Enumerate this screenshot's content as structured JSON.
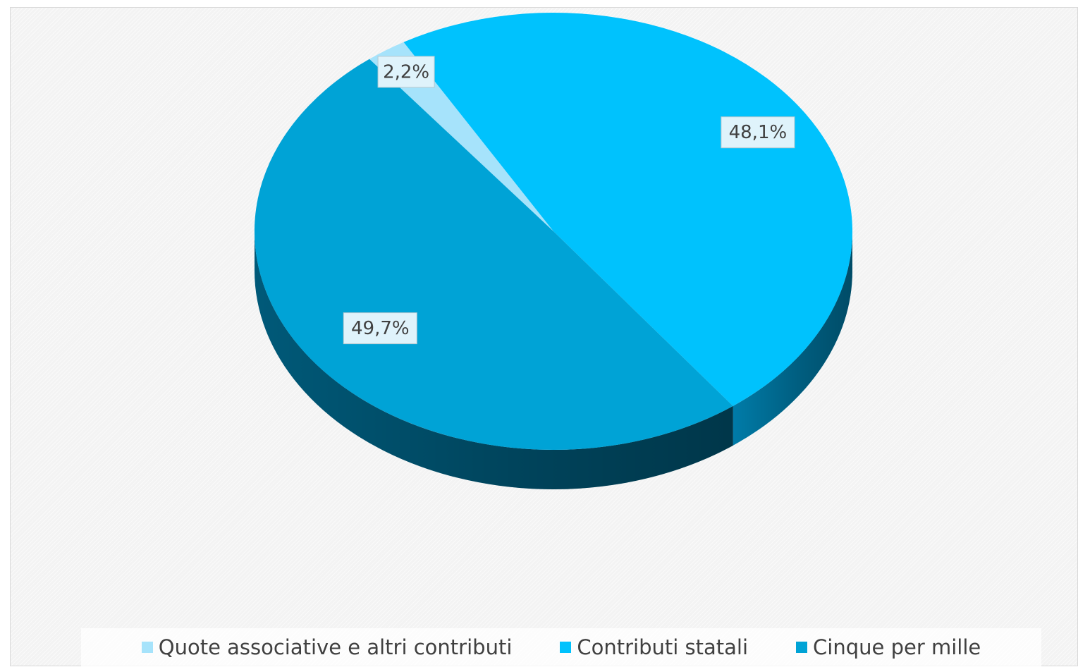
{
  "chart_data": {
    "type": "pie",
    "style": "3d",
    "title": "",
    "categories": [
      "Quote associative e altri contributi",
      "Contributi statali",
      "Cinque per mille"
    ],
    "values": [
      2.2,
      48.1,
      49.7
    ],
    "data_labels": [
      "2,2%",
      "48,1%",
      "49,7%"
    ],
    "colors": [
      "#a6e3fb",
      "#00c2fd",
      "#00a3d6"
    ],
    "side_colors": [
      "#4f5d66",
      "#0082b1",
      "#005e7f"
    ],
    "legend_position": "bottom",
    "grid": false
  }
}
